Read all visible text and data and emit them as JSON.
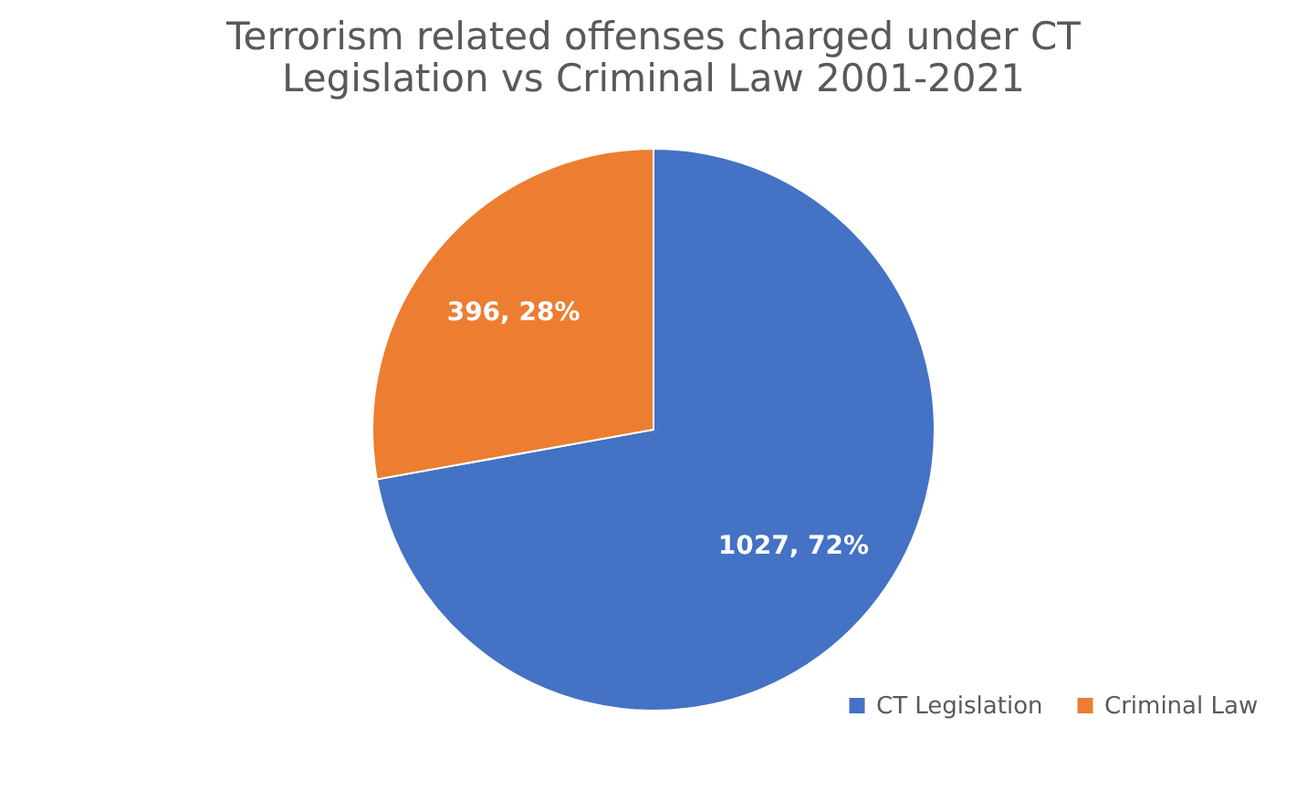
{
  "chart_data": {
    "type": "pie",
    "title": "Terrorism related offenses charged under CT Legislation vs Criminal Law 2001-2021",
    "categories": [
      "CT Legislation",
      "Criminal Law"
    ],
    "values": [
      1027,
      396
    ],
    "colors": [
      "#4472c4",
      "#ed7d31"
    ],
    "value_labels": [
      "1027, 72%",
      "396, 28%"
    ],
    "legend": "bottom right"
  }
}
